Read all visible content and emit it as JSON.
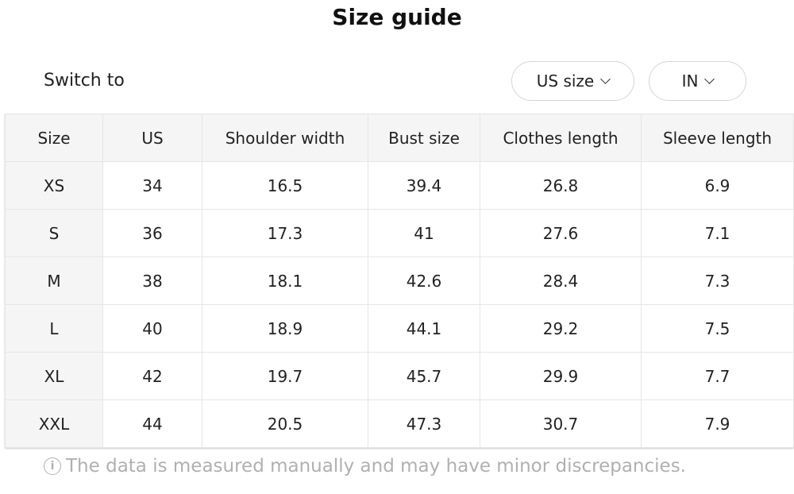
{
  "title": "Size guide",
  "switch_label": "Switch to",
  "size_select": {
    "value": "US size"
  },
  "unit_select": {
    "value": "IN"
  },
  "table": {
    "headers": [
      "Size",
      "US",
      "Shoulder width",
      "Bust size",
      "Clothes length",
      "Sleeve length"
    ],
    "rows": [
      [
        "XS",
        "34",
        "16.5",
        "39.4",
        "26.8",
        "6.9"
      ],
      [
        "S",
        "36",
        "17.3",
        "41",
        "27.6",
        "7.1"
      ],
      [
        "M",
        "38",
        "18.1",
        "42.6",
        "28.4",
        "7.3"
      ],
      [
        "L",
        "40",
        "18.9",
        "44.1",
        "29.2",
        "7.5"
      ],
      [
        "XL",
        "42",
        "19.7",
        "45.7",
        "29.9",
        "7.7"
      ],
      [
        "XXL",
        "44",
        "20.5",
        "47.3",
        "30.7",
        "7.9"
      ]
    ]
  },
  "note": {
    "icon": "info-icon",
    "text": "The data is measured manually and may have minor discrepancies."
  }
}
